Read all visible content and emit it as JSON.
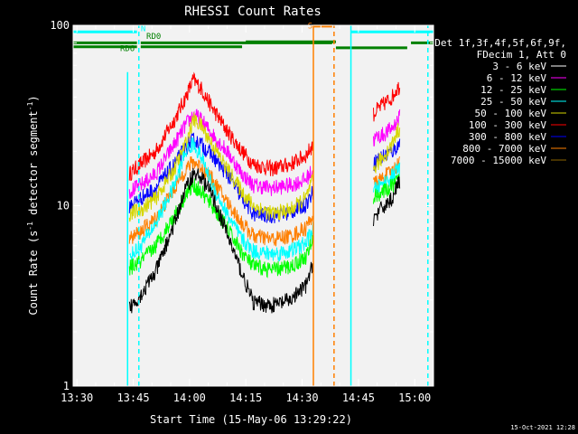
{
  "chart_data": {
    "type": "line",
    "title": "RHESSI Count Rates",
    "xlabel": "Start Time (15-May-06 13:29:22)",
    "ylabel_main": "Count Rate (s",
    "ylabel_exp": "-1",
    "ylabel_tail": " detector segment",
    "ylabel_close": ")",
    "yscale": "log",
    "ylim": [
      1,
      100
    ],
    "xlim_minutes": [
      -1,
      95
    ],
    "x_ticks": [
      {
        "t": 0,
        "label": "13:30"
      },
      {
        "t": 15,
        "label": "13:45"
      },
      {
        "t": 30,
        "label": "14:00"
      },
      {
        "t": 45,
        "label": "14:15"
      },
      {
        "t": 60,
        "label": "14:30"
      },
      {
        "t": 75,
        "label": "14:45"
      },
      {
        "t": 90,
        "label": "15:00"
      }
    ],
    "y_ticks": [
      {
        "v": 1,
        "label": "1"
      },
      {
        "v": 10,
        "label": "10"
      },
      {
        "v": 100,
        "label": "100"
      }
    ],
    "legend": {
      "header": [
        "Det 1f,3f,4f,5f,6f,9f,",
        "FDecim 1, Att 0"
      ],
      "position": "right",
      "entries": [
        {
          "label": "3 - 6 keV",
          "color": "#000000"
        },
        {
          "label": "6 - 12 keV",
          "color": "#ff00ff"
        },
        {
          "label": "12 - 25 keV",
          "color": "#00ff00"
        },
        {
          "label": "25 - 50 keV",
          "color": "#00ffff"
        },
        {
          "label": "50 - 100 keV",
          "color": "#d6d600"
        },
        {
          "label": "100 - 300 keV",
          "color": "#ff0000"
        },
        {
          "label": "300 - 800 keV",
          "color": "#0000ff"
        },
        {
          "label": "800 - 7000 keV",
          "color": "#ff7f00"
        },
        {
          "label": "7000 - 15000 keV",
          "color": "#8b6400"
        }
      ]
    },
    "series": [
      {
        "color": "#ff0000",
        "segments": [
          [
            [
              14,
              15
            ],
            [
              17,
              17
            ],
            [
              21,
              20
            ],
            [
              26,
              30
            ],
            [
              29,
              40
            ],
            [
              31,
              50
            ],
            [
              33,
              45
            ],
            [
              36,
              35
            ],
            [
              40,
              26
            ],
            [
              44,
              20
            ],
            [
              47,
              17
            ],
            [
              52,
              16
            ],
            [
              57,
              17
            ],
            [
              61,
              19
            ],
            [
              63,
              22
            ]
          ],
          [
            [
              79,
              32
            ],
            [
              80,
              34
            ],
            [
              82,
              37
            ],
            [
              84,
              40
            ],
            [
              85,
              44
            ],
            [
              86,
              46
            ]
          ]
        ]
      },
      {
        "color": "#ff00ff",
        "segments": [
          [
            [
              14,
              12
            ],
            [
              17,
              13
            ],
            [
              21,
              15
            ],
            [
              26,
              22
            ],
            [
              29,
              28
            ],
            [
              31,
              32
            ],
            [
              33,
              30
            ],
            [
              36,
              25
            ],
            [
              40,
              20
            ],
            [
              44,
              15
            ],
            [
              47,
              13
            ],
            [
              52,
              12.5
            ],
            [
              57,
              13
            ],
            [
              61,
              14
            ],
            [
              63,
              16
            ]
          ],
          [
            [
              79,
              23
            ],
            [
              80,
              24
            ],
            [
              82,
              25
            ],
            [
              84,
              27
            ],
            [
              85,
              29
            ],
            [
              86,
              31
            ]
          ]
        ]
      },
      {
        "color": "#0000ff",
        "segments": [
          [
            [
              14,
              10
            ],
            [
              17,
              11
            ],
            [
              21,
              12.5
            ],
            [
              26,
              17
            ],
            [
              29,
              21
            ],
            [
              31,
              23
            ],
            [
              33,
              22
            ],
            [
              36,
              19
            ],
            [
              40,
              15
            ],
            [
              44,
              11
            ],
            [
              47,
              9
            ],
            [
              52,
              8.8
            ],
            [
              57,
              9.2
            ],
            [
              61,
              10.2
            ],
            [
              63,
              12
            ]
          ],
          [
            [
              79,
              17
            ],
            [
              80,
              18
            ],
            [
              82,
              19
            ],
            [
              84,
              20
            ],
            [
              85,
              21
            ],
            [
              86,
              22
            ]
          ]
        ]
      },
      {
        "color": "#d6d600",
        "segments": [
          [
            [
              14,
              9
            ],
            [
              17,
              9.5
            ],
            [
              21,
              11
            ],
            [
              26,
              16
            ],
            [
              29,
              22
            ],
            [
              31,
              30
            ],
            [
              33,
              28
            ],
            [
              36,
              22
            ],
            [
              40,
              16
            ],
            [
              44,
              12
            ],
            [
              47,
              10
            ],
            [
              52,
              9
            ],
            [
              57,
              9.5
            ],
            [
              61,
              11
            ],
            [
              63,
              14
            ]
          ],
          [
            [
              79,
              16
            ],
            [
              80,
              17
            ],
            [
              82,
              19
            ],
            [
              84,
              22
            ],
            [
              85,
              25
            ],
            [
              86,
              27
            ]
          ]
        ]
      },
      {
        "color": "#ff7f00",
        "segments": [
          [
            [
              14,
              6.5
            ],
            [
              17,
              7.2
            ],
            [
              21,
              8.5
            ],
            [
              26,
              12.5
            ],
            [
              29,
              16
            ],
            [
              31,
              17.5
            ],
            [
              33,
              16.5
            ],
            [
              36,
              14
            ],
            [
              40,
              10.5
            ],
            [
              44,
              8
            ],
            [
              47,
              6.8
            ],
            [
              52,
              6.5
            ],
            [
              57,
              6.8
            ],
            [
              61,
              7.5
            ],
            [
              63,
              9
            ]
          ],
          [
            [
              79,
              13
            ],
            [
              80,
              13.5
            ],
            [
              82,
              14.5
            ],
            [
              84,
              15.5
            ],
            [
              85,
              16.5
            ],
            [
              86,
              17.5
            ]
          ]
        ]
      },
      {
        "color": "#00ffff",
        "segments": [
          [
            [
              14,
              5.2
            ],
            [
              17,
              6
            ],
            [
              21,
              8
            ],
            [
              26,
              13
            ],
            [
              29,
              20
            ],
            [
              31,
              22
            ],
            [
              33,
              19
            ],
            [
              36,
              13
            ],
            [
              40,
              9
            ],
            [
              44,
              6.5
            ],
            [
              47,
              5.6
            ],
            [
              52,
              5.4
            ],
            [
              57,
              5.6
            ],
            [
              61,
              6.2
            ],
            [
              63,
              7.5
            ]
          ],
          [
            [
              79,
              12
            ],
            [
              80,
              12.5
            ],
            [
              82,
              13.5
            ],
            [
              84,
              14.5
            ],
            [
              85,
              15.5
            ],
            [
              86,
              16
            ]
          ]
        ]
      },
      {
        "color": "#00ff00",
        "segments": [
          [
            [
              14,
              4.5
            ],
            [
              17,
              4.9
            ],
            [
              21,
              6
            ],
            [
              26,
              8.8
            ],
            [
              29,
              11.5
            ],
            [
              31,
              13
            ],
            [
              33,
              12
            ],
            [
              36,
              10
            ],
            [
              40,
              7.5
            ],
            [
              44,
              5.5
            ],
            [
              47,
              4.6
            ],
            [
              52,
              4.4
            ],
            [
              57,
              4.6
            ],
            [
              61,
              5.2
            ],
            [
              63,
              6.5
            ]
          ],
          [
            [
              79,
              11
            ],
            [
              80,
              11.5
            ],
            [
              82,
              12
            ],
            [
              84,
              12.8
            ],
            [
              85,
              13.5
            ],
            [
              86,
              14
            ]
          ]
        ]
      },
      {
        "color": "#000000",
        "segments": [
          [
            [
              14,
              2.7
            ],
            [
              17,
              3.2
            ],
            [
              21,
              4.3
            ],
            [
              26,
              8
            ],
            [
              29,
              12.5
            ],
            [
              31,
              15
            ],
            [
              33,
              14.5
            ],
            [
              36,
              11.5
            ],
            [
              40,
              7
            ],
            [
              44,
              4.2
            ],
            [
              47,
              2.9
            ],
            [
              52,
              2.8
            ],
            [
              57,
              3
            ],
            [
              61,
              3.6
            ],
            [
              63,
              4.8
            ]
          ],
          [
            [
              79,
              8.5
            ],
            [
              80,
              9
            ],
            [
              82,
              10
            ],
            [
              84,
              11
            ],
            [
              85,
              12.5
            ],
            [
              86,
              13.5
            ]
          ]
        ]
      }
    ],
    "flags": [
      {
        "label": "N",
        "color": "#00ffff",
        "label_t": 17,
        "label_y": 93,
        "segments": [
          [
            [
              -1,
              92
            ],
            [
              16,
              92
            ]
          ],
          [
            [
              73,
              92
            ],
            [
              95,
              92
            ]
          ]
        ]
      },
      {
        "label": "RD0",
        "color": "#008000",
        "label_t": 18.5,
        "label_y": 84,
        "segments": [
          [
            [
              -1,
              80
            ],
            [
              16,
              80
            ]
          ],
          [
            [
              17,
              80
            ],
            [
              68,
              80
            ]
          ]
        ]
      },
      {
        "label": "RD6",
        "color": "#008000",
        "label_t": 11.5,
        "label_y": 72,
        "segments": [
          [
            [
              -1,
              76
            ],
            [
              16,
              76
            ]
          ],
          [
            [
              17,
              76
            ],
            [
              44,
              76
            ]
          ],
          [
            [
              45,
              81
            ],
            [
              69,
              81
            ]
          ],
          [
            [
              69,
              75
            ],
            [
              88,
              75
            ]
          ],
          [
            [
              89,
              80
            ],
            [
              95,
              80
            ]
          ]
        ]
      },
      {
        "label": "S",
        "color": "#ff7f00",
        "label_t": 61.5,
        "label_y": 96,
        "segments": [
          [
            [
              63,
              99
            ],
            [
              68,
              99
            ]
          ]
        ]
      }
    ],
    "vlines": [
      {
        "t": 13.5,
        "color": "#00ffff",
        "style": "solid",
        "y_from": 1,
        "y_to": 55
      },
      {
        "t": 16.5,
        "color": "#00ffff",
        "style": "dashed",
        "y_from": 1,
        "y_to": 100
      },
      {
        "t": 63,
        "color": "#ff7f00",
        "style": "solid",
        "y_from": 1,
        "y_to": 100
      },
      {
        "t": 68.5,
        "color": "#ff7f00",
        "style": "dashed",
        "y_from": 1,
        "y_to": 100
      },
      {
        "t": 73,
        "color": "#00ffff",
        "style": "solid",
        "y_from": 1,
        "y_to": 100
      },
      {
        "t": 93.5,
        "color": "#00ffff",
        "style": "dashed",
        "y_from": 1,
        "y_to": 100
      }
    ],
    "plot_bg": "#f2f2f2",
    "page_bg": "#000000",
    "text_color": "#ffffff"
  },
  "timestamp": "15-Oct-2021 12:28"
}
